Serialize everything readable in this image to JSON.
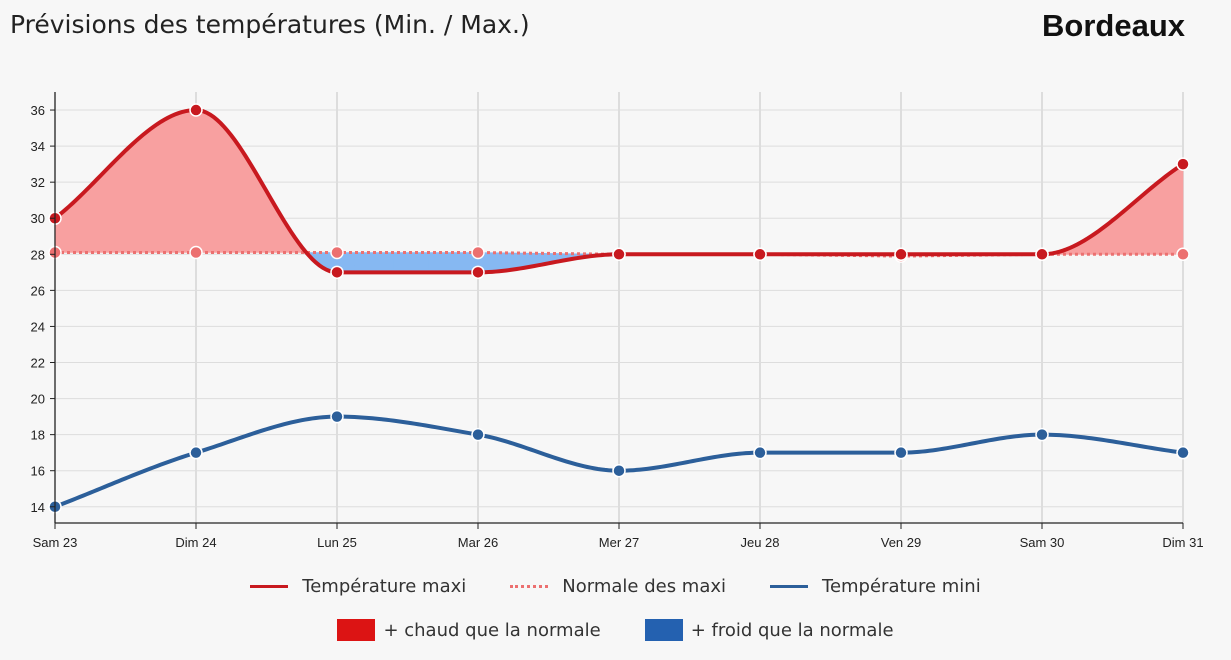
{
  "header": {
    "title": "Prévisions des températures (Min. / Max.)",
    "city": "Bordeaux"
  },
  "colors": {
    "max": "#c8191f",
    "normal": "#ec7070",
    "min": "#2c5f9a",
    "warm_fill": "#f8a0a0",
    "cold_fill": "#86b8f2",
    "warm_swatch": "#dc1414",
    "cold_swatch": "#2461b0"
  },
  "legend": {
    "max_label": "Température maxi",
    "normal_label": "Normale des maxi",
    "min_label": "Température mini",
    "warm_label": "+ chaud que la normale",
    "cold_label": "+ froid que la normale"
  },
  "chart_data": {
    "type": "line",
    "categories": [
      "Sam 23",
      "Dim 24",
      "Lun 25",
      "Mar 26",
      "Mer 27",
      "Jeu 28",
      "Ven 29",
      "Sam 30",
      "Dim 31"
    ],
    "series": [
      {
        "name": "Température maxi",
        "values": [
          30,
          36,
          27,
          27,
          28,
          28,
          28,
          28,
          33
        ]
      },
      {
        "name": "Normale des maxi",
        "values": [
          28.1,
          28.1,
          28.1,
          28.1,
          28,
          28,
          27.9,
          28,
          28
        ]
      },
      {
        "name": "Température mini",
        "values": [
          14,
          17,
          19,
          18,
          16,
          17,
          17,
          18,
          17
        ]
      }
    ],
    "areas": [
      "+ chaud que la normale",
      "+ froid que la normale"
    ],
    "yticks": [
      14,
      16,
      18,
      20,
      22,
      24,
      26,
      28,
      30,
      32,
      34,
      36
    ],
    "ylim": [
      13.1,
      37
    ],
    "grid": true,
    "legend_position": "bottom"
  }
}
